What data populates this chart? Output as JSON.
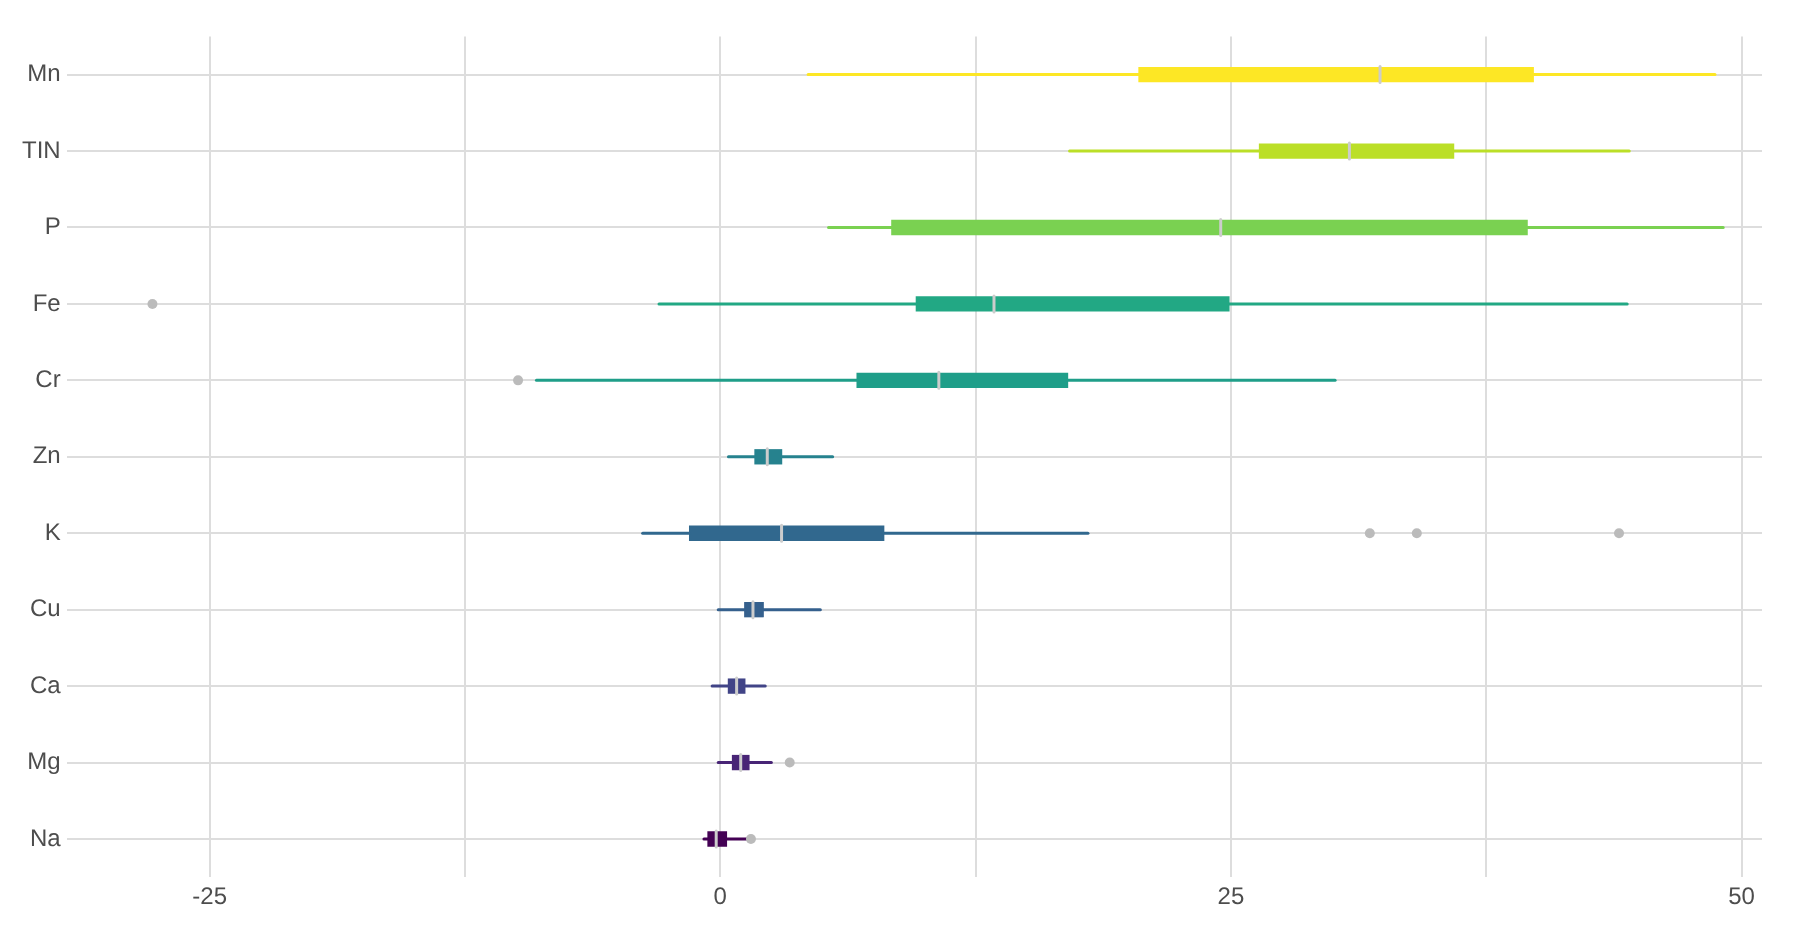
{
  "chart_data": {
    "type": "box",
    "orientation": "horizontal",
    "categories": [
      "Mn",
      "TIN",
      "P",
      "Fe",
      "Cr",
      "Zn",
      "K",
      "Cu",
      "Ca",
      "Mg",
      "Na"
    ],
    "colors": [
      "#fde725",
      "#bbdf27",
      "#7ad151",
      "#22a884",
      "#1f9e89",
      "#26828e",
      "#31688e",
      "#35608d",
      "#414487",
      "#482576",
      "#440154"
    ],
    "boxes": [
      {
        "low": 4.3,
        "q1": 20.5,
        "median": 32.3,
        "q3": 39.8,
        "high": 48.7
      },
      {
        "low": 17.1,
        "q1": 26.4,
        "median": 30.8,
        "q3": 35.9,
        "high": 44.5
      },
      {
        "low": 5.3,
        "q1": 8.4,
        "median": 24.5,
        "q3": 39.5,
        "high": 49.1
      },
      {
        "low": -3,
        "q1": 9.6,
        "median": 13.4,
        "q3": 24.9,
        "high": 44.4,
        "outliers": [
          -27.8
        ]
      },
      {
        "low": -9,
        "q1": 6.7,
        "median": 10.7,
        "q3": 17,
        "high": 30.1,
        "outliers": [
          -9.9
        ]
      },
      {
        "low": 0.4,
        "q1": 1.7,
        "median": 2.3,
        "q3": 3,
        "high": 5.5
      },
      {
        "low": -3.8,
        "q1": -1.5,
        "median": 3,
        "q3": 8,
        "high": 18,
        "outliers": [
          31.8,
          34.1,
          44
        ]
      },
      {
        "low": -0.1,
        "q1": 1.2,
        "median": 1.6,
        "q3": 2.1,
        "high": 4.9
      },
      {
        "low": -0.4,
        "q1": 0.4,
        "median": 0.8,
        "q3": 1.2,
        "high": 2.2
      },
      {
        "low": -0.1,
        "q1": 0.6,
        "median": 1,
        "q3": 1.4,
        "high": 2.5,
        "outliers": [
          3.4
        ]
      },
      {
        "low": -0.8,
        "q1": -0.6,
        "median": -0.2,
        "q3": 0.3,
        "high": 1.3,
        "outliers": [
          1.5
        ]
      }
    ],
    "xlim": [
      -32,
      51
    ],
    "xticks": [
      -25,
      {
        "value": -12.5,
        "label": null
      },
      0,
      {
        "value": 12.5,
        "label": null
      },
      25,
      {
        "value": 37.5,
        "label": null
      },
      50
    ],
    "grid": true
  }
}
